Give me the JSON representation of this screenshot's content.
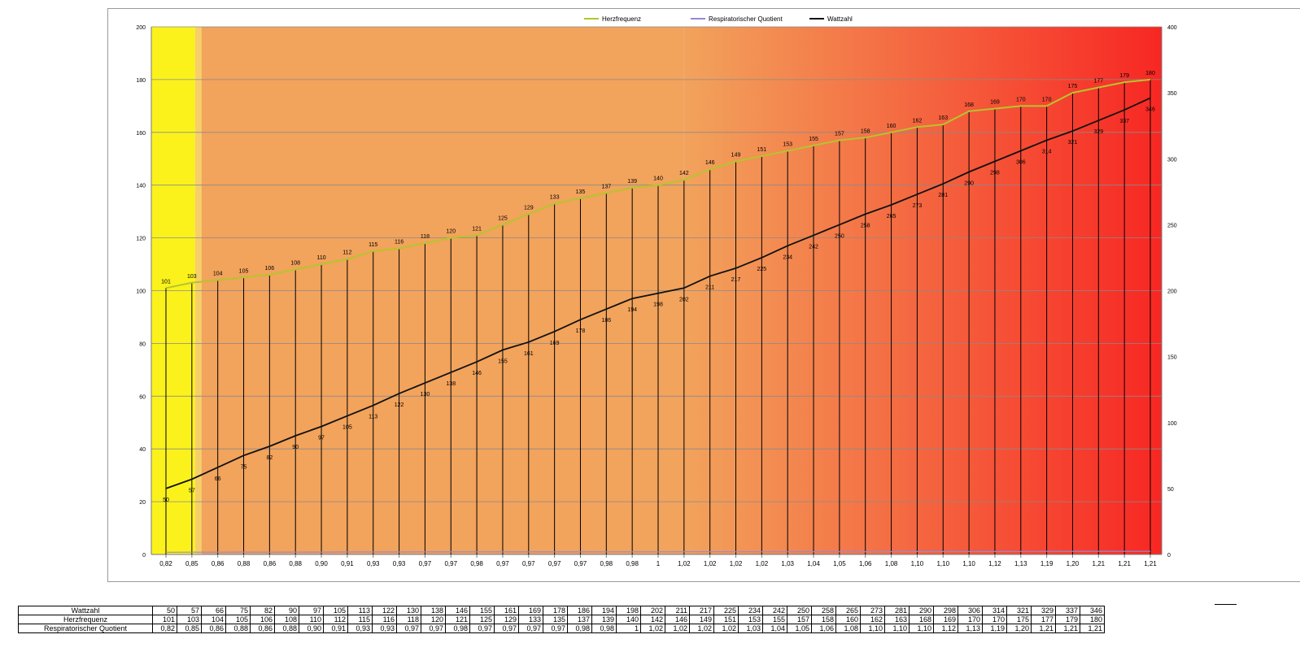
{
  "colors": {
    "herzfrequenz": "#b6c42e",
    "respiratorischer_quotient": "#9a88cc",
    "wattzahl": "#111111",
    "zone_yellow": "#fbf21c",
    "zone_orange": "#f2a35c",
    "zone_red": "#f72723",
    "gridline": "#8a8a8a",
    "frame_border": "#9a9a9a"
  },
  "chart_data": {
    "type": "line",
    "title": "",
    "legend_position": "top-center",
    "legend": [
      "Herzfrequenz",
      "Respiratorischer Quotient",
      "Wattzahl"
    ],
    "x_tick_labels": [
      "0,82",
      "0,85",
      "0,86",
      "0,88",
      "0,86",
      "0,88",
      "0,90",
      "0,91",
      "0,93",
      "0,93",
      "0,97",
      "0,97",
      "0,98",
      "0,97",
      "0,97",
      "0,97",
      "0,97",
      "0,98",
      "0,98",
      "1",
      "1,02",
      "1,02",
      "1,02",
      "1,02",
      "1,03",
      "1,04",
      "1,05",
      "1,06",
      "1,08",
      "1,10",
      "1,10",
      "1,10",
      "1,12",
      "1,13",
      "1,19",
      "1,20",
      "1,21",
      "1,21",
      "1,21"
    ],
    "y_left": {
      "ylim": [
        0,
        200
      ],
      "ticks": [
        0,
        20,
        40,
        60,
        80,
        100,
        120,
        140,
        160,
        180,
        200
      ]
    },
    "y_right": {
      "ylim": [
        0,
        400
      ],
      "ticks": [
        0,
        50,
        100,
        150,
        200,
        250,
        300,
        350,
        400
      ]
    },
    "grid": "horizontal",
    "background_zones": [
      {
        "color": "zone_yellow",
        "from_index": 0,
        "to_index": 1
      },
      {
        "color": "zone_orange",
        "from_index": 1,
        "to_index": 20
      },
      {
        "color": "gradient_orange_to_red",
        "from_index": 20,
        "to_index": 38
      }
    ],
    "series": [
      {
        "name": "Herzfrequenz",
        "axis": "left",
        "color": "herzfrequenz",
        "data_labels": true,
        "values": [
          101,
          103,
          104,
          105,
          106,
          108,
          110,
          112,
          115,
          116,
          118,
          120,
          121,
          125,
          129,
          133,
          135,
          137,
          139,
          140,
          142,
          146,
          149,
          151,
          153,
          155,
          157,
          158,
          160,
          162,
          163,
          168,
          169,
          170,
          170,
          175,
          177,
          179,
          180
        ]
      },
      {
        "name": "Respiratorischer Quotient",
        "axis": "left",
        "color": "respiratorischer_quotient",
        "data_labels": false,
        "values": [
          0.82,
          0.85,
          0.86,
          0.88,
          0.86,
          0.88,
          0.9,
          0.91,
          0.93,
          0.93,
          0.97,
          0.97,
          0.98,
          0.97,
          0.97,
          0.97,
          0.97,
          0.98,
          0.98,
          1,
          1.02,
          1.02,
          1.02,
          1.02,
          1.03,
          1.04,
          1.05,
          1.06,
          1.08,
          1.1,
          1.1,
          1.1,
          1.12,
          1.13,
          1.19,
          1.2,
          1.21,
          1.21,
          1.21
        ]
      },
      {
        "name": "Wattzahl",
        "axis": "right",
        "color": "wattzahl",
        "data_labels": true,
        "values": [
          50,
          57,
          66,
          75,
          82,
          90,
          97,
          105,
          113,
          122,
          130,
          138,
          146,
          155,
          161,
          169,
          178,
          186,
          194,
          198,
          202,
          211,
          217,
          225,
          234,
          242,
          250,
          258,
          265,
          273,
          281,
          290,
          298,
          306,
          314,
          321,
          329,
          337,
          346
        ]
      }
    ]
  },
  "table": {
    "rows": [
      {
        "label": "Wattzahl",
        "values": [
          "50",
          "57",
          "66",
          "75",
          "82",
          "90",
          "97",
          "105",
          "113",
          "122",
          "130",
          "138",
          "146",
          "155",
          "161",
          "169",
          "178",
          "186",
          "194",
          "198",
          "202",
          "211",
          "217",
          "225",
          "234",
          "242",
          "250",
          "258",
          "265",
          "273",
          "281",
          "290",
          "298",
          "306",
          "314",
          "321",
          "329",
          "337",
          "346"
        ]
      },
      {
        "label": "Herzfrequenz",
        "values": [
          "101",
          "103",
          "104",
          "105",
          "106",
          "108",
          "110",
          "112",
          "115",
          "116",
          "118",
          "120",
          "121",
          "125",
          "129",
          "133",
          "135",
          "137",
          "139",
          "140",
          "142",
          "146",
          "149",
          "151",
          "153",
          "155",
          "157",
          "158",
          "160",
          "162",
          "163",
          "168",
          "169",
          "170",
          "170",
          "175",
          "177",
          "179",
          "180"
        ]
      },
      {
        "label": "Respiratorischer Quotient",
        "values": [
          "0,82",
          "0,85",
          "0,86",
          "0,88",
          "0,86",
          "0,88",
          "0,90",
          "0,91",
          "0,93",
          "0,93",
          "0,97",
          "0,97",
          "0,98",
          "0,97",
          "0,97",
          "0,97",
          "0,97",
          "0,98",
          "0,98",
          "1",
          "1,02",
          "1,02",
          "1,02",
          "1,02",
          "1,03",
          "1,04",
          "1,05",
          "1,06",
          "1,08",
          "1,10",
          "1,10",
          "1,10",
          "1,12",
          "1,13",
          "1,19",
          "1,20",
          "1,21",
          "1,21",
          "1,21"
        ]
      }
    ]
  }
}
